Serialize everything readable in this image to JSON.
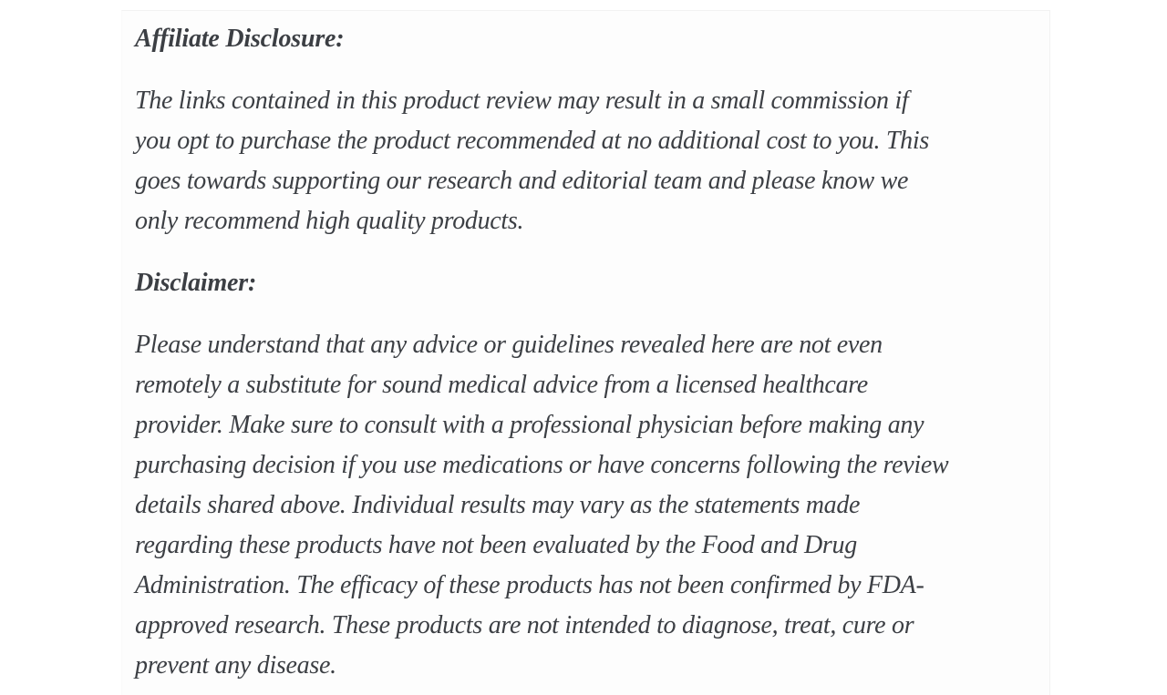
{
  "colors": {
    "page_bg": "#ffffff",
    "card_bg": "#fdfdfd",
    "card_border": "#f2f2f2",
    "text": "#3c3f44"
  },
  "article": {
    "sections": [
      {
        "heading": "Affiliate Disclosure:",
        "body": "The links contained in this product review may result in a small commission if\nyou opt to purchase the product recommended at no additional cost to you. This\ngoes towards supporting our research and editorial team and please know we\nonly recommend high quality products."
      },
      {
        "heading": "Disclaimer:",
        "body": "Please understand that any advice or guidelines revealed here are not even\nremotely a substitute for sound medical advice from a licensed healthcare\nprovider. Make sure to consult with a professional physician before making any\npurchasing decision if you use medications or have concerns following the review\ndetails shared above. Individual results may vary as the statements made\nregarding these products have not been evaluated by the Food and Drug\nAdministration. The efficacy of these products has not been confirmed by FDA-\napproved research. These products are not intended to diagnose, treat, cure or\nprevent any disease."
      }
    ]
  }
}
